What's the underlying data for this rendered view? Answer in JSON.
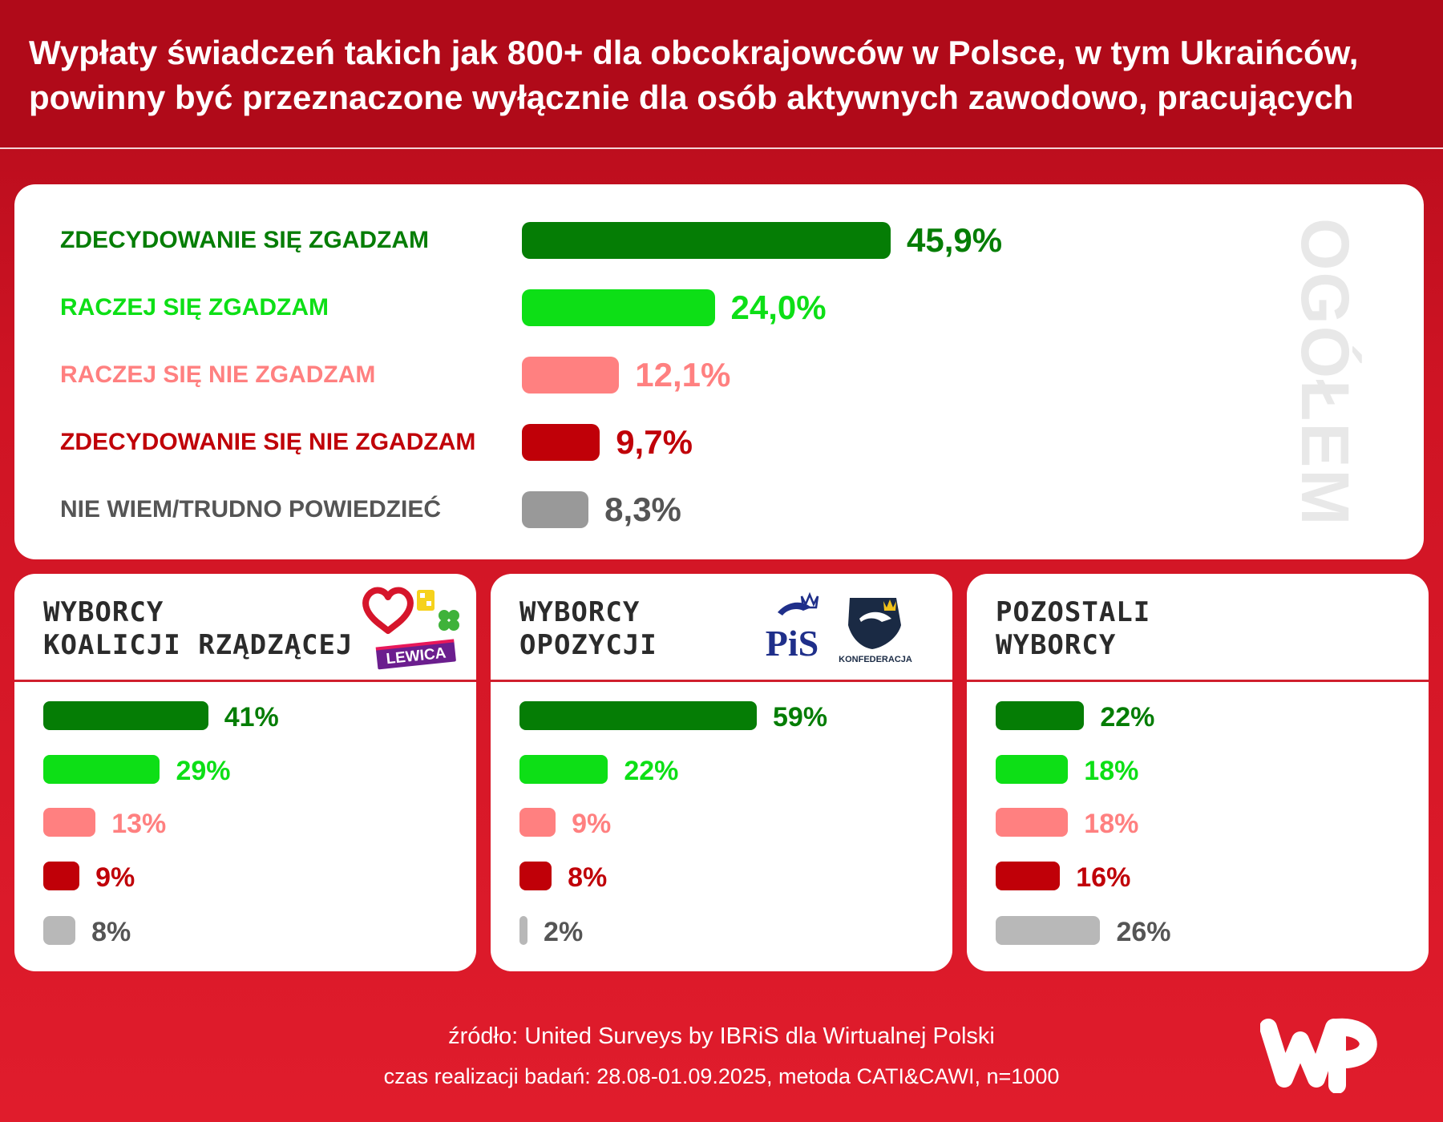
{
  "header": {
    "title_line1": "Wypłaty świadczeń takich jak 800+ dla obcokrajowców w Polsce, w tym Ukraińców,",
    "title_line2": "powinny być przeznaczone wyłącznie dla osób aktywnych zawodowo, pracujących"
  },
  "colors": {
    "strongly_agree": "#057d05",
    "rather_agree": "#0ddf16",
    "rather_disagree": "#ff8080",
    "strongly_disagree": "#c00008",
    "dont_know": "#999999",
    "dont_know_segments": "#b8b8b8",
    "dont_know_text": "#555555"
  },
  "chart_data": [
    {
      "type": "bar",
      "orientation": "horizontal",
      "panel_label": "OGÓŁEM",
      "categories": [
        "ZDECYDOWANIE SIĘ ZGADZAM",
        "RACZEJ SIĘ ZGADZAM",
        "RACZEJ SIĘ NIE ZGADZAM",
        "ZDECYDOWANIE SIĘ NIE ZGADZAM",
        "NIE WIEM/TRUDNO POWIEDZIEĆ"
      ],
      "values": [
        45.9,
        24.0,
        12.1,
        9.7,
        8.3
      ],
      "value_labels": [
        "45,9%",
        "24,0%",
        "12,1%",
        "9,7%",
        "8,3%"
      ],
      "unit": "%"
    },
    {
      "type": "bar",
      "orientation": "horizontal",
      "title_line1": "WYBORCY",
      "title_line2": "KOALICJI RZĄDZĄCEJ",
      "logo_text": "LEWICA",
      "values": [
        41,
        29,
        13,
        9,
        8
      ],
      "value_labels": [
        "41%",
        "29%",
        "13%",
        "9%",
        "8%"
      ],
      "unit": "%"
    },
    {
      "type": "bar",
      "orientation": "horizontal",
      "title_line1": "WYBORCY",
      "title_line2": "OPOZYCJI",
      "logo_text_1": "PiS",
      "logo_text_2": "KONFEDERACJA",
      "values": [
        59,
        22,
        9,
        8,
        2
      ],
      "value_labels": [
        "59%",
        "22%",
        "9%",
        "8%",
        "2%"
      ],
      "unit": "%"
    },
    {
      "type": "bar",
      "orientation": "horizontal",
      "title_line1": "POZOSTALI",
      "title_line2": "WYBORCY",
      "values": [
        22,
        18,
        18,
        16,
        26
      ],
      "value_labels": [
        "22%",
        "18%",
        "18%",
        "16%",
        "26%"
      ],
      "unit": "%"
    }
  ],
  "footer": {
    "source": "źródło: United Surveys by IBRiS dla Wirtualnej Polski",
    "method": "czas realizacji badań: 28.08-01.09.2025, metoda CATI&CAWI, n=1000"
  }
}
